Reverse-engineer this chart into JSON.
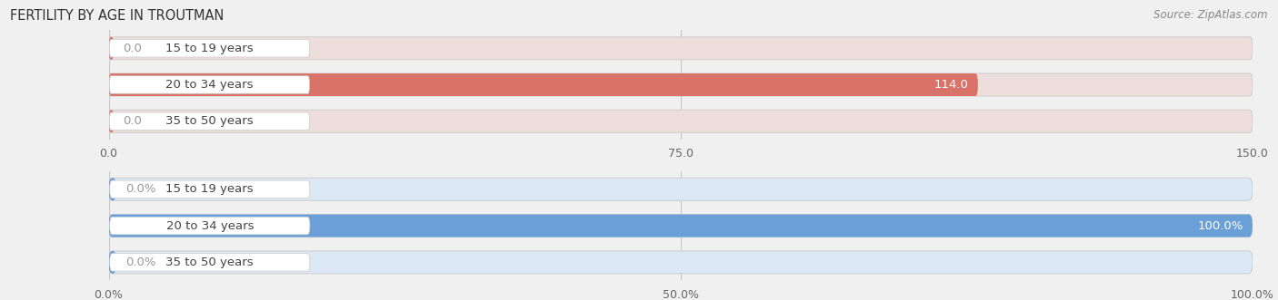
{
  "title": "FERTILITY BY AGE IN TROUTMAN",
  "source": "Source: ZipAtlas.com",
  "top_chart": {
    "categories": [
      "15 to 19 years",
      "20 to 34 years",
      "35 to 50 years"
    ],
    "values": [
      0.0,
      114.0,
      0.0
    ],
    "xlim": [
      0,
      150.0
    ],
    "xticks": [
      0.0,
      75.0,
      150.0
    ],
    "xtick_labels": [
      "0.0",
      "75.0",
      "150.0"
    ],
    "bar_color": "#d9736a",
    "bar_bg_color": "#eddedd",
    "label_color_inside": "#ffffff",
    "label_color_outside": "#999999"
  },
  "bottom_chart": {
    "categories": [
      "15 to 19 years",
      "20 to 34 years",
      "35 to 50 years"
    ],
    "values": [
      0.0,
      100.0,
      0.0
    ],
    "xlim": [
      0,
      100.0
    ],
    "xticks": [
      0.0,
      50.0,
      100.0
    ],
    "xtick_labels": [
      "0.0%",
      "50.0%",
      "100.0%"
    ],
    "bar_color": "#6a9fd8",
    "bar_bg_color": "#dce8f5",
    "label_color_inside": "#ffffff",
    "label_color_outside": "#999999"
  },
  "fig_bg_color": "#f0f0f0",
  "title_fontsize": 10.5,
  "source_fontsize": 8.5,
  "cat_fontsize": 9.5,
  "val_fontsize": 9.5,
  "tick_fontsize": 9,
  "bar_height": 0.62,
  "cat_label_bg": "#ffffff"
}
